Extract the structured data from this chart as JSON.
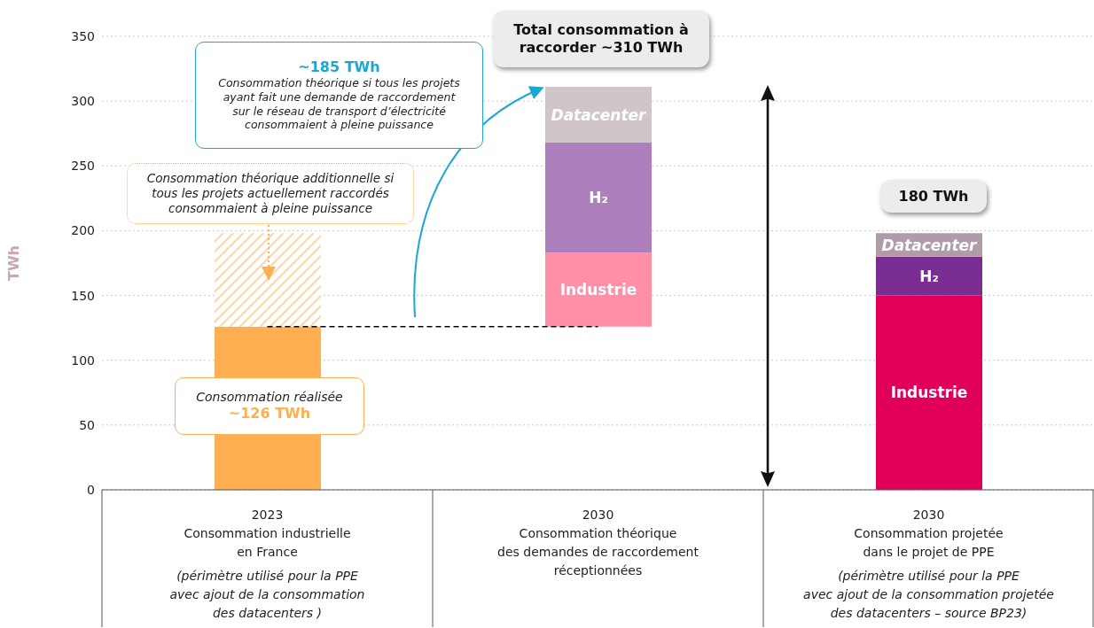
{
  "chart_data": {
    "type": "bar",
    "categories": [
      "2023\nConsommation industrielle\nen France\n\n(périmètre utilisé pour la PPE\navec ajout de la consommation\ndes datacenters )",
      "2030\nConsommation théorique\ndes demandes de raccordement\nréceptionnées",
      "2030\nConsommation projetée\ndans le projet de PPE\n\n(périmètre utilisé pour la PPE\navec ajout de la consommation projetée\ndes datacenters – source BP23)"
    ],
    "series": [
      {
        "values": [
          126,
          57,
          150
        ],
        "base": [
          0,
          126,
          0
        ],
        "colors": [
          "#ffae52",
          "#ff8fa6",
          "#e0005a"
        ],
        "value_labels": [
          null,
          "Industrie",
          "Industrie"
        ]
      },
      {
        "values": [
          72,
          null,
          null
        ],
        "base": [
          126,
          null,
          null
        ],
        "color": "#ffae52"
      },
      {
        "name": "H₂",
        "values": [
          null,
          85,
          30
        ],
        "base": [
          null,
          183,
          150
        ],
        "colors": [
          null,
          "#ad7fbd",
          "#7a2e92"
        ]
      },
      {
        "name": "Datacenter",
        "values": [
          null,
          43,
          18
        ],
        "base": [
          null,
          268,
          180
        ],
        "colors": [
          null,
          "#d1c5cc",
          "#b09ca8"
        ]
      }
    ],
    "ylabel": "TWh",
    "ylim": [
      0,
      350
    ],
    "yticks": [
      0,
      50,
      100,
      150,
      200,
      250,
      300,
      350
    ],
    "grid": "y",
    "legend": false,
    "ref_lines": [
      {
        "axis": "y",
        "value": 126,
        "color": "#000000",
        "line_style": "dashed"
      }
    ],
    "annotations": [
      "~185 TWh\nConsommation théorique si tous les projets\nayant fait une demande de raccordement\nsur le réseau de transport d’électricité\nconsommaient à pleine puissance",
      "Consommation théorique additionnelle si\ntous les projets actuellement raccordés\nconsommaient à pleine puissance",
      "Consommation réalisée\n~126 TWh",
      "Total consommation à\nraccorder ~310 TWh",
      "180 TWh"
    ]
  }
}
